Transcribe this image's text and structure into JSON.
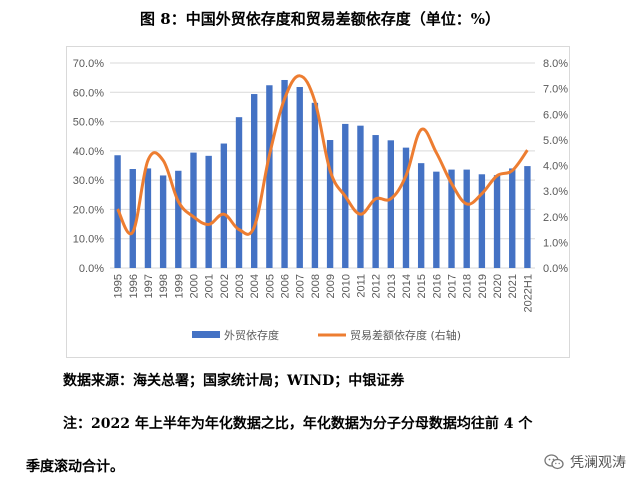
{
  "title": "图 8：中国外贸依存度和贸易差额依存度（单位：%）",
  "source": "数据来源：海关总署；国家统计局；WIND；中银证券",
  "note_line1": "注：2022 年上半年为年化数据之比，年化数据为分子分母数据均往前 4 个",
  "note_line2": "季度滚动合计。",
  "watermark": "凭澜观涛",
  "colors": {
    "bar": "#4472C4",
    "line": "#ED7D31",
    "grid": "#d9d9d9",
    "axis_text": "#595959"
  },
  "chart_data": {
    "type": "bar",
    "categories": [
      "1995",
      "1996",
      "1997",
      "1998",
      "1999",
      "2000",
      "2001",
      "2002",
      "2003",
      "2004",
      "2005",
      "2006",
      "2007",
      "2008",
      "2009",
      "2010",
      "2011",
      "2012",
      "2013",
      "2014",
      "2015",
      "2016",
      "2017",
      "2018",
      "2019",
      "2020",
      "2021",
      "2022H1"
    ],
    "series": [
      {
        "name": "外贸依存度",
        "type": "bar",
        "axis": "left",
        "values": [
          38.5,
          33.8,
          34.0,
          31.6,
          33.2,
          39.4,
          38.3,
          42.5,
          51.5,
          59.4,
          62.4,
          64.2,
          61.8,
          56.4,
          43.7,
          49.2,
          48.6,
          45.4,
          43.6,
          41.1,
          35.8,
          32.9,
          33.6,
          33.6,
          32.0,
          31.7,
          34.0,
          34.8
        ]
      },
      {
        "name": "贸易差额依存度 (右轴)",
        "type": "line",
        "axis": "right",
        "values": [
          2.3,
          1.4,
          4.2,
          4.2,
          2.6,
          2.0,
          1.7,
          2.1,
          1.5,
          1.6,
          4.4,
          6.6,
          7.5,
          6.5,
          3.8,
          2.8,
          2.1,
          2.7,
          2.7,
          3.6,
          5.4,
          4.5,
          3.3,
          2.5,
          2.9,
          3.6,
          3.8,
          4.6
        ]
      }
    ],
    "yticks_left": [
      "0.0%",
      "10.0%",
      "20.0%",
      "30.0%",
      "40.0%",
      "50.0%",
      "60.0%",
      "70.0%"
    ],
    "yticks_right": [
      "0.0%",
      "1.0%",
      "2.0%",
      "3.0%",
      "4.0%",
      "5.0%",
      "6.0%",
      "7.0%",
      "8.0%"
    ],
    "ylim_left": [
      0,
      70
    ],
    "ylim_right": [
      0,
      8
    ],
    "grid": true,
    "legend_position": "bottom"
  }
}
